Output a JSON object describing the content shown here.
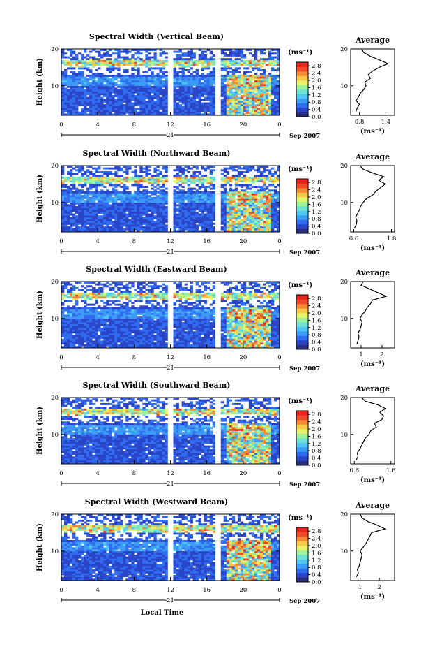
{
  "xlabel_bottom": "Local Time",
  "colors": [
    "#2b2f7a",
    "#2b45c8",
    "#2f6cf0",
    "#3c9bf5",
    "#4fc6f2",
    "#6fe0d2",
    "#9df29a",
    "#e6f26a",
    "#f6c84a",
    "#f38a35",
    "#ee4a2a",
    "#e8261f"
  ],
  "chart_data": [
    {
      "type": "heatmap",
      "title": "Spectral Width (Vertical Beam)",
      "ylabel": "Height (km)",
      "y_ticks": [
        "20",
        "10"
      ],
      "ylim": [
        2,
        20
      ],
      "x_ticks": [
        "0",
        "4",
        "8",
        "12",
        "16",
        "20",
        "0"
      ],
      "x_date": "21",
      "x_date_suffix": "Sep 2007",
      "xlim": [
        0,
        24
      ],
      "colorbar": {
        "unit": "(ms⁻¹)",
        "ticks": [
          "2.8",
          "2.4",
          "2.0",
          "1.6",
          "1.2",
          "0.8",
          "0.4",
          "0.0"
        ],
        "range": [
          0,
          3.0
        ]
      },
      "data_gaps_hours": [
        [
          11.8,
          12.2
        ],
        [
          17.0,
          17.6
        ]
      ],
      "average_profile": {
        "title": "Average",
        "xlabel": "(ms⁻¹)",
        "x_ticks": [
          "0.8",
          "1.4"
        ],
        "xlim": [
          0.6,
          1.6
        ],
        "y_ticks": [
          "20",
          "10"
        ],
        "height_km": [
          3,
          4,
          5,
          6,
          7,
          8,
          9,
          10,
          11,
          12,
          13,
          14,
          15,
          16,
          17,
          18,
          19,
          20
        ],
        "width_ms": [
          0.72,
          0.75,
          0.8,
          0.72,
          0.78,
          0.82,
          0.9,
          0.95,
          0.92,
          1.05,
          1.0,
          1.1,
          1.25,
          1.45,
          1.25,
          1.05,
          0.9,
          0.85
        ]
      }
    },
    {
      "type": "heatmap",
      "title": "Spectral Width (Northward Beam)",
      "ylabel": "Height (km)",
      "y_ticks": [
        "20",
        "10"
      ],
      "ylim": [
        2,
        20
      ],
      "x_ticks": [
        "0",
        "4",
        "8",
        "12",
        "16",
        "20",
        "0"
      ],
      "x_date": "21",
      "x_date_suffix": "Sep 2007",
      "xlim": [
        0,
        24
      ],
      "colorbar": {
        "unit": "(ms⁻¹)",
        "ticks": [
          "2.8",
          "2.4",
          "2.0",
          "1.6",
          "1.2",
          "0.8",
          "0.4",
          "0.0"
        ],
        "range": [
          0,
          3.0
        ]
      },
      "data_gaps_hours": [
        [
          11.8,
          12.2
        ],
        [
          17.0,
          17.6
        ]
      ],
      "average_profile": {
        "title": "Average",
        "xlabel": "(ms⁻¹)",
        "x_ticks": [
          "0.6",
          "1.8"
        ],
        "xlim": [
          0.5,
          1.9
        ],
        "y_ticks": [
          "20",
          "10"
        ],
        "height_km": [
          3,
          4,
          5,
          6,
          7,
          8,
          9,
          10,
          11,
          12,
          13,
          14,
          15,
          16,
          17,
          18,
          19,
          20
        ],
        "width_ms": [
          0.62,
          0.68,
          0.7,
          0.66,
          0.72,
          0.78,
          0.82,
          0.9,
          1.0,
          1.2,
          1.3,
          1.45,
          1.6,
          1.4,
          1.55,
          1.2,
          0.9,
          0.8
        ]
      }
    },
    {
      "type": "heatmap",
      "title": "Spectral Width (Eastward Beam)",
      "ylabel": "Height (km)",
      "y_ticks": [
        "20",
        "10"
      ],
      "ylim": [
        2,
        20
      ],
      "x_ticks": [
        "0",
        "4",
        "8",
        "12",
        "16",
        "20",
        "0"
      ],
      "x_date": "21",
      "x_date_suffix": "Sep 2007",
      "xlim": [
        0,
        24
      ],
      "colorbar": {
        "unit": "(ms⁻¹)",
        "ticks": [
          "2.8",
          "2.4",
          "2.0",
          "1.6",
          "1.2",
          "0.8",
          "0.4",
          "0.0"
        ],
        "range": [
          0,
          3.0
        ]
      },
      "data_gaps_hours": [
        [
          11.8,
          12.2
        ],
        [
          17.0,
          17.6
        ]
      ],
      "average_profile": {
        "title": "Average",
        "xlabel": "(ms⁻¹)",
        "x_ticks": [
          "1",
          "2"
        ],
        "xlim": [
          0.5,
          2.6
        ],
        "y_ticks": [
          "20",
          "10"
        ],
        "height_km": [
          3,
          4,
          5,
          6,
          7,
          8,
          9,
          10,
          11,
          12,
          13,
          14,
          15,
          16,
          17,
          18,
          19,
          20
        ],
        "width_ms": [
          0.8,
          0.85,
          0.9,
          0.85,
          0.95,
          1.0,
          1.05,
          0.95,
          1.05,
          1.2,
          1.3,
          1.45,
          1.55,
          2.2,
          1.8,
          1.4,
          1.0,
          1.1
        ]
      }
    },
    {
      "type": "heatmap",
      "title": "Spectral Width (Southward Beam)",
      "ylabel": "Height (km)",
      "y_ticks": [
        "20",
        "10"
      ],
      "ylim": [
        2,
        20
      ],
      "x_ticks": [
        "0",
        "4",
        "8",
        "12",
        "16",
        "20",
        "0"
      ],
      "x_date": "21",
      "x_date_suffix": "Sep 2007",
      "xlim": [
        0,
        24
      ],
      "colorbar": {
        "unit": "(ms⁻¹)",
        "ticks": [
          "2.8",
          "2.4",
          "2.0",
          "1.6",
          "1.2",
          "0.8",
          "0.4",
          "0.0"
        ],
        "range": [
          0,
          3.0
        ]
      },
      "data_gaps_hours": [
        [
          11.8,
          12.2
        ],
        [
          17.0,
          17.6
        ]
      ],
      "average_profile": {
        "title": "Average",
        "xlabel": "(ms⁻¹)",
        "x_ticks": [
          "0.6",
          "1.6"
        ],
        "xlim": [
          0.5,
          1.7
        ],
        "y_ticks": [
          "20",
          "10"
        ],
        "height_km": [
          3,
          4,
          5,
          6,
          7,
          8,
          9,
          10,
          11,
          12,
          13,
          14,
          15,
          16,
          17,
          18,
          19,
          20
        ],
        "width_ms": [
          0.65,
          0.7,
          0.68,
          0.75,
          0.8,
          0.85,
          0.9,
          1.0,
          1.05,
          1.2,
          1.15,
          1.35,
          1.4,
          1.3,
          1.45,
          1.25,
          0.9,
          0.8
        ]
      }
    },
    {
      "type": "heatmap",
      "title": "Spectral Width (Westward Beam)",
      "ylabel": "Height (km)",
      "y_ticks": [
        "20",
        "10"
      ],
      "ylim": [
        2,
        20
      ],
      "x_ticks": [
        "0",
        "4",
        "8",
        "12",
        "16",
        "20",
        "0"
      ],
      "x_date": "21",
      "x_date_suffix": "Sep 2007",
      "xlim": [
        0,
        24
      ],
      "colorbar": {
        "unit": "(ms⁻¹)",
        "ticks": [
          "2.8",
          "2.4",
          "2.0",
          "1.6",
          "1.2",
          "0.8",
          "0.4",
          "0.0"
        ],
        "range": [
          0,
          3.0
        ]
      },
      "data_gaps_hours": [
        [
          11.8,
          12.2
        ],
        [
          17.0,
          17.6
        ]
      ],
      "average_profile": {
        "title": "Average",
        "xlabel": "(ms⁻¹)",
        "x_ticks": [
          "1",
          "2"
        ],
        "xlim": [
          0.5,
          2.8
        ],
        "y_ticks": [
          "20",
          "10"
        ],
        "height_km": [
          3,
          4,
          5,
          6,
          7,
          8,
          9,
          10,
          11,
          12,
          13,
          14,
          15,
          16,
          17,
          18,
          19,
          20
        ],
        "width_ms": [
          0.8,
          0.9,
          0.85,
          0.95,
          1.0,
          1.05,
          1.1,
          1.0,
          1.15,
          1.3,
          1.4,
          1.5,
          1.6,
          2.3,
          1.9,
          1.4,
          1.1,
          1.0
        ]
      }
    }
  ]
}
